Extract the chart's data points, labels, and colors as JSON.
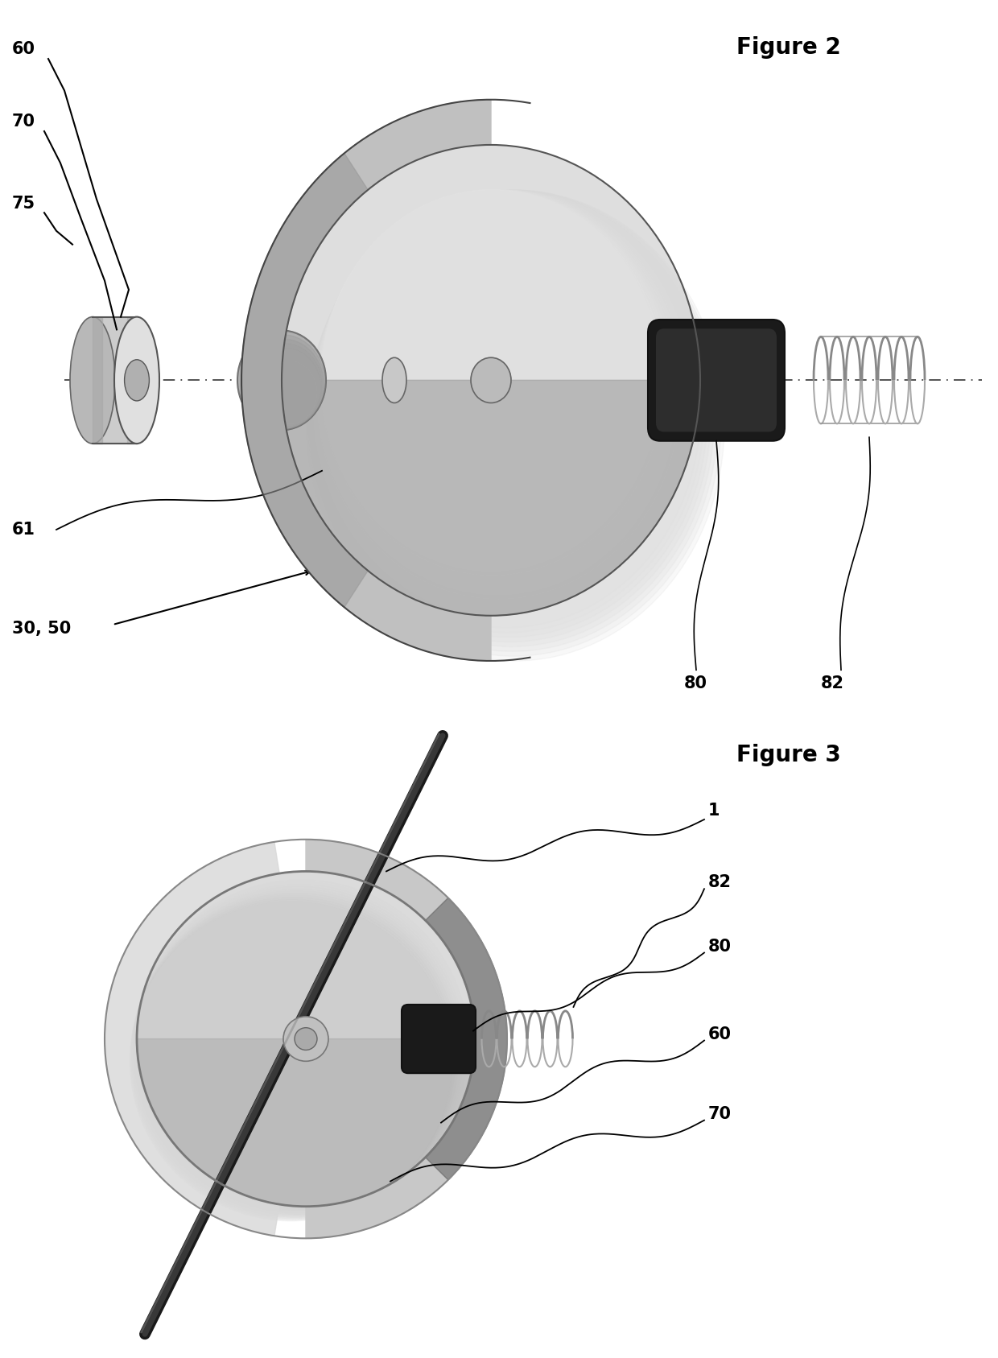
{
  "fig2_title": "Figure 2",
  "fig3_title": "Figure 3",
  "bg": "#ffffff",
  "lc": "#000000",
  "gray_light": "#d8d8d8",
  "gray_mid": "#aaaaaa",
  "gray_dark": "#555555",
  "label_60": "60",
  "label_70": "70",
  "label_75": "75",
  "label_61": "61",
  "label_30_50": "30, 50",
  "label_80": "80",
  "label_82": "82",
  "label_1": "1",
  "label_80b": "80",
  "label_82b": "82",
  "label_60b": "60",
  "label_70b": "70"
}
